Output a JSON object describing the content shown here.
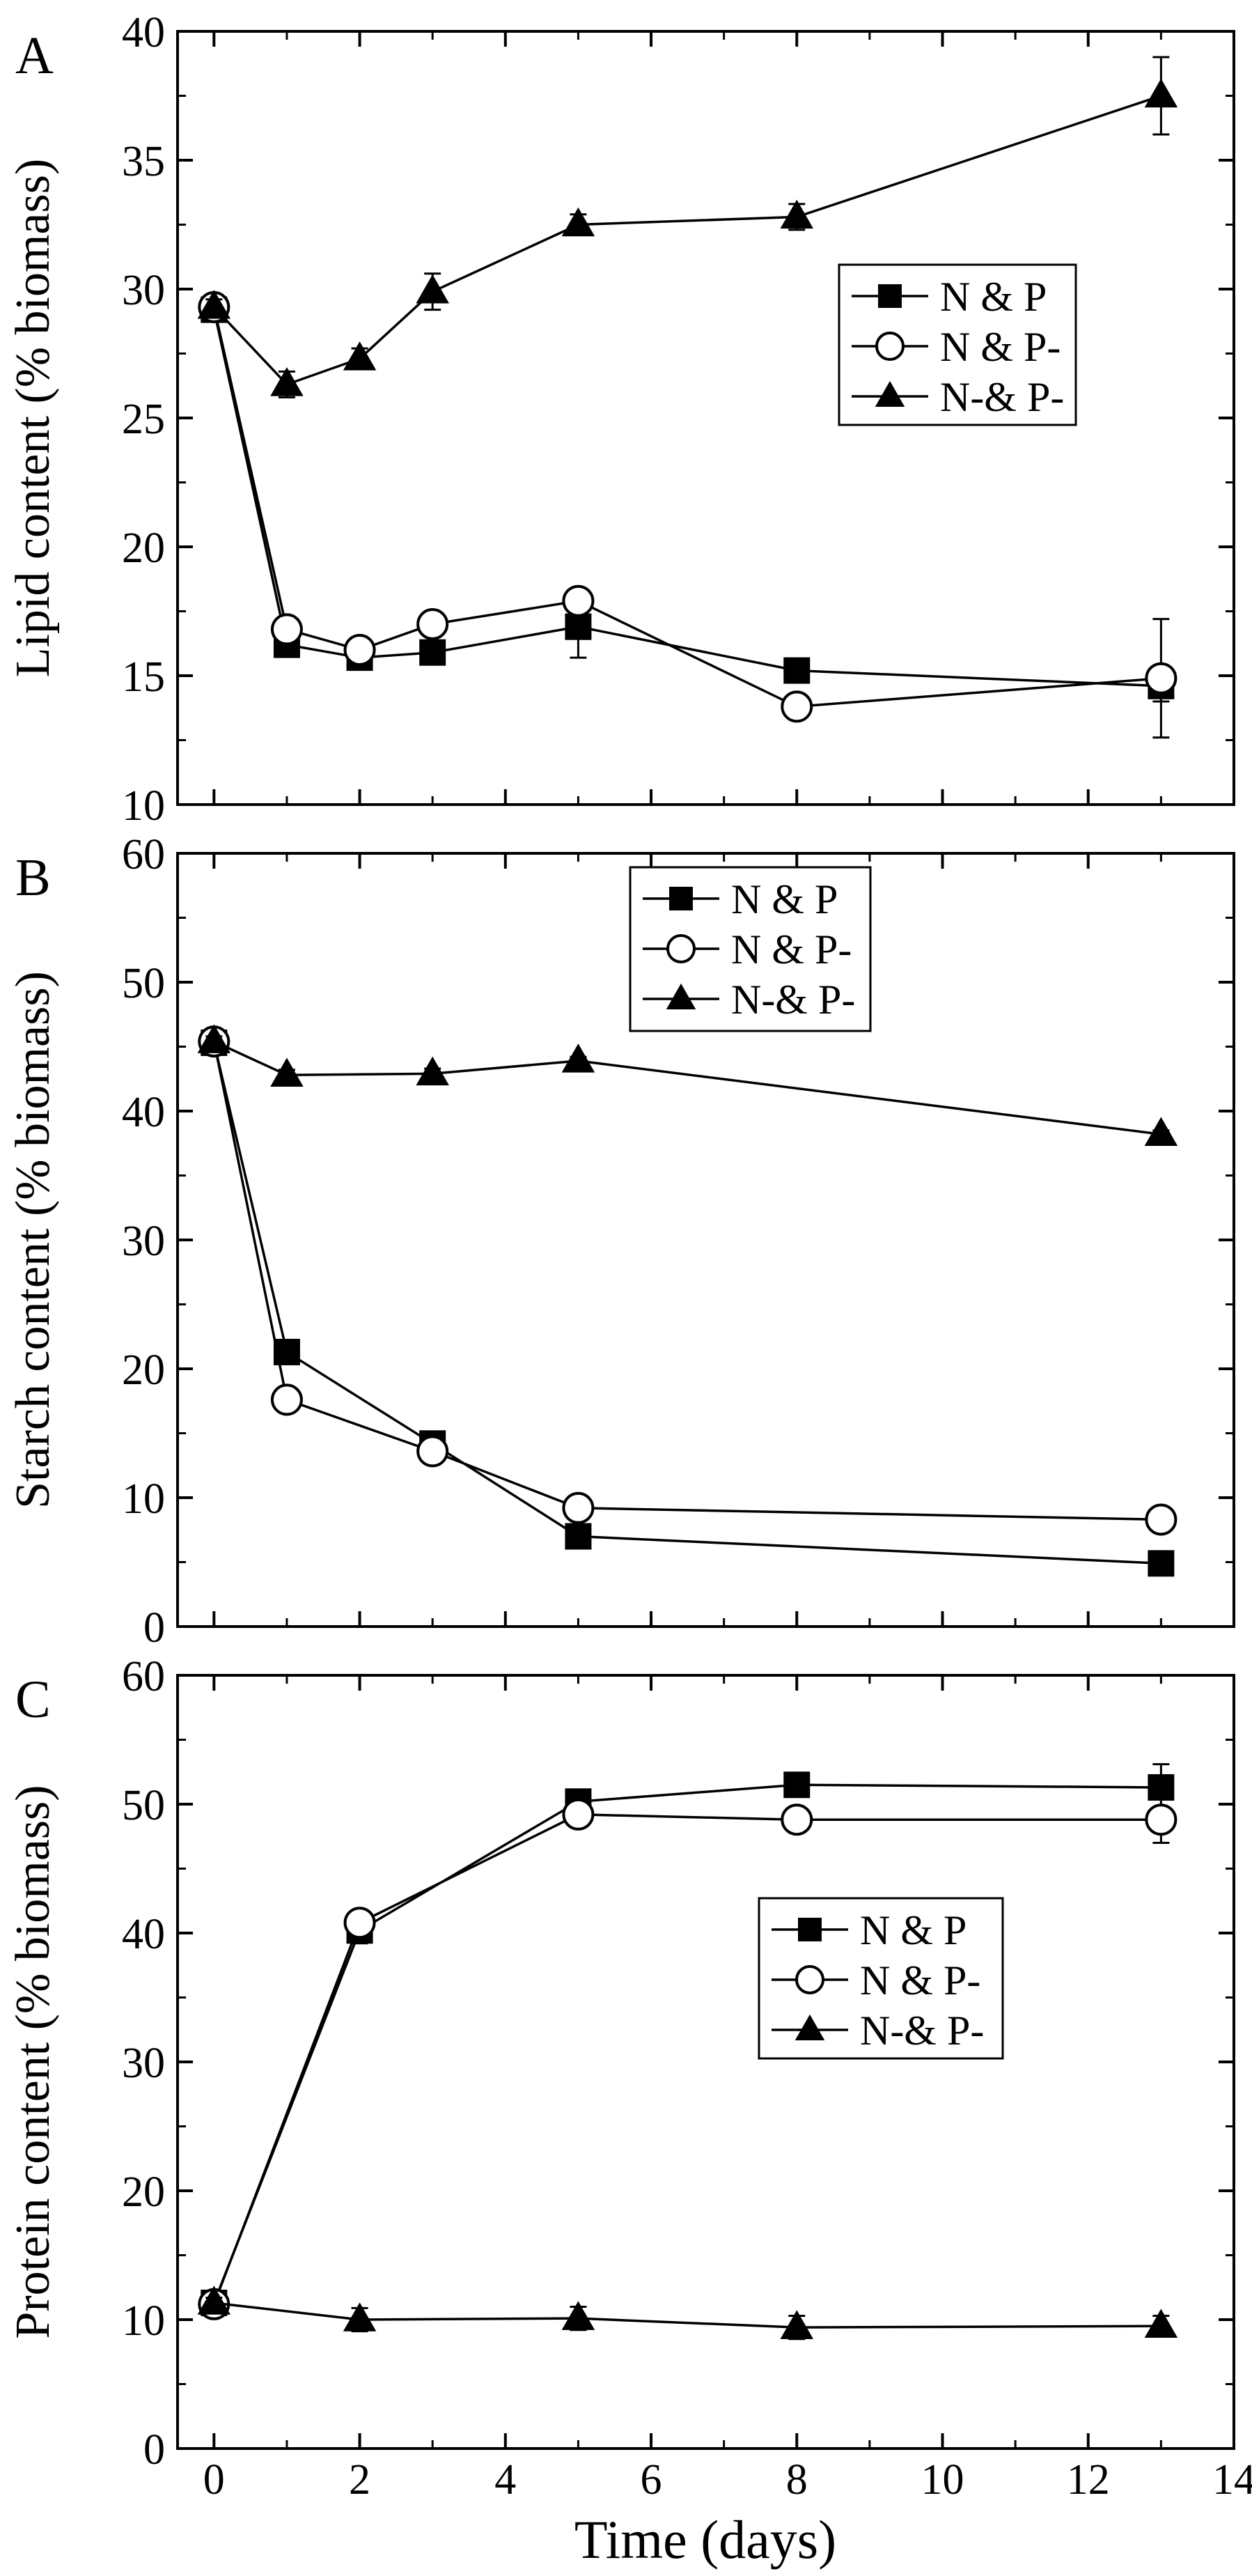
{
  "figure": {
    "xlabel": "Time (days)",
    "xlim": [
      -0.5,
      14
    ],
    "xticks": [
      0,
      2,
      4,
      6,
      8,
      10,
      12,
      14
    ],
    "line_color": "#000000",
    "background": "#ffffff"
  },
  "chart_data": [
    {
      "type": "line",
      "panel_label": "A",
      "ylabel": "Lipid content (% biomass)",
      "ylim": [
        10,
        40
      ],
      "yticks": [
        10,
        15,
        20,
        25,
        30,
        35,
        40
      ],
      "legend_position": "upper-right",
      "series": [
        {
          "name": "N & P",
          "marker": "square",
          "x": [
            0,
            1,
            2,
            3,
            5,
            8,
            13
          ],
          "values": [
            29.2,
            16.2,
            15.7,
            15.9,
            16.9,
            15.2,
            14.6
          ],
          "errors": [
            0.3,
            0.4,
            0.3,
            0.3,
            1.2,
            0.3,
            0.6
          ]
        },
        {
          "name": "N & P-",
          "marker": "circle",
          "x": [
            0,
            1,
            2,
            3,
            5,
            8,
            13
          ],
          "values": [
            29.3,
            16.8,
            16.0,
            17.0,
            17.9,
            13.8,
            14.9
          ],
          "errors": [
            0.3,
            0.5,
            0.5,
            0.5,
            0.4,
            0.5,
            2.3
          ]
        },
        {
          "name": "N-& P-",
          "marker": "triangle",
          "x": [
            0,
            1,
            2,
            3,
            5,
            8,
            13
          ],
          "values": [
            29.3,
            26.3,
            27.3,
            29.9,
            32.5,
            32.8,
            37.5
          ],
          "errors": [
            0.3,
            0.5,
            0.4,
            0.7,
            0.4,
            0.5,
            1.5
          ]
        }
      ]
    },
    {
      "type": "line",
      "panel_label": "B",
      "ylabel": "Starch content (% biomass)",
      "ylim": [
        0,
        60
      ],
      "yticks": [
        0,
        10,
        20,
        30,
        40,
        50,
        60
      ],
      "legend_position": "upper-right",
      "series": [
        {
          "name": "N & P",
          "marker": "square",
          "x": [
            0,
            1,
            3,
            5,
            13
          ],
          "values": [
            45.3,
            21.3,
            14.2,
            7.0,
            4.9
          ],
          "errors": [
            0.4,
            0.4,
            0.4,
            0.3,
            0.3
          ]
        },
        {
          "name": "N & P-",
          "marker": "circle",
          "x": [
            0,
            1,
            3,
            5,
            13
          ],
          "values": [
            45.4,
            17.6,
            13.6,
            9.2,
            8.3
          ],
          "errors": [
            0.4,
            0.4,
            0.4,
            0.3,
            0.3
          ]
        },
        {
          "name": "N-& P-",
          "marker": "triangle",
          "x": [
            0,
            1,
            3,
            5,
            13
          ],
          "values": [
            45.4,
            42.8,
            42.9,
            43.9,
            38.2
          ],
          "errors": [
            0.4,
            0.4,
            0.4,
            0.3,
            0.3
          ]
        }
      ]
    },
    {
      "type": "line",
      "panel_label": "C",
      "ylabel": "Protein content (% biomass)",
      "ylim": [
        0,
        60
      ],
      "yticks": [
        0,
        10,
        20,
        30,
        40,
        50,
        60
      ],
      "legend_position": "right",
      "series": [
        {
          "name": "N & P",
          "marker": "square",
          "x": [
            0,
            2,
            5,
            8,
            13
          ],
          "values": [
            11.3,
            40.2,
            50.2,
            51.5,
            51.3
          ],
          "errors": [
            0.5,
            1.0,
            0.6,
            0.5,
            1.8
          ]
        },
        {
          "name": "N & P-",
          "marker": "circle",
          "x": [
            0,
            2,
            5,
            8,
            13
          ],
          "values": [
            11.2,
            40.8,
            49.2,
            48.8,
            48.8
          ],
          "errors": [
            0.5,
            0.8,
            1.0,
            0.5,
            1.8
          ]
        },
        {
          "name": "N-& P-",
          "marker": "triangle",
          "x": [
            0,
            2,
            5,
            8,
            13
          ],
          "values": [
            11.3,
            10.0,
            10.1,
            9.4,
            9.5
          ],
          "errors": [
            0.4,
            0.9,
            0.9,
            0.9,
            0.8
          ]
        }
      ]
    }
  ]
}
